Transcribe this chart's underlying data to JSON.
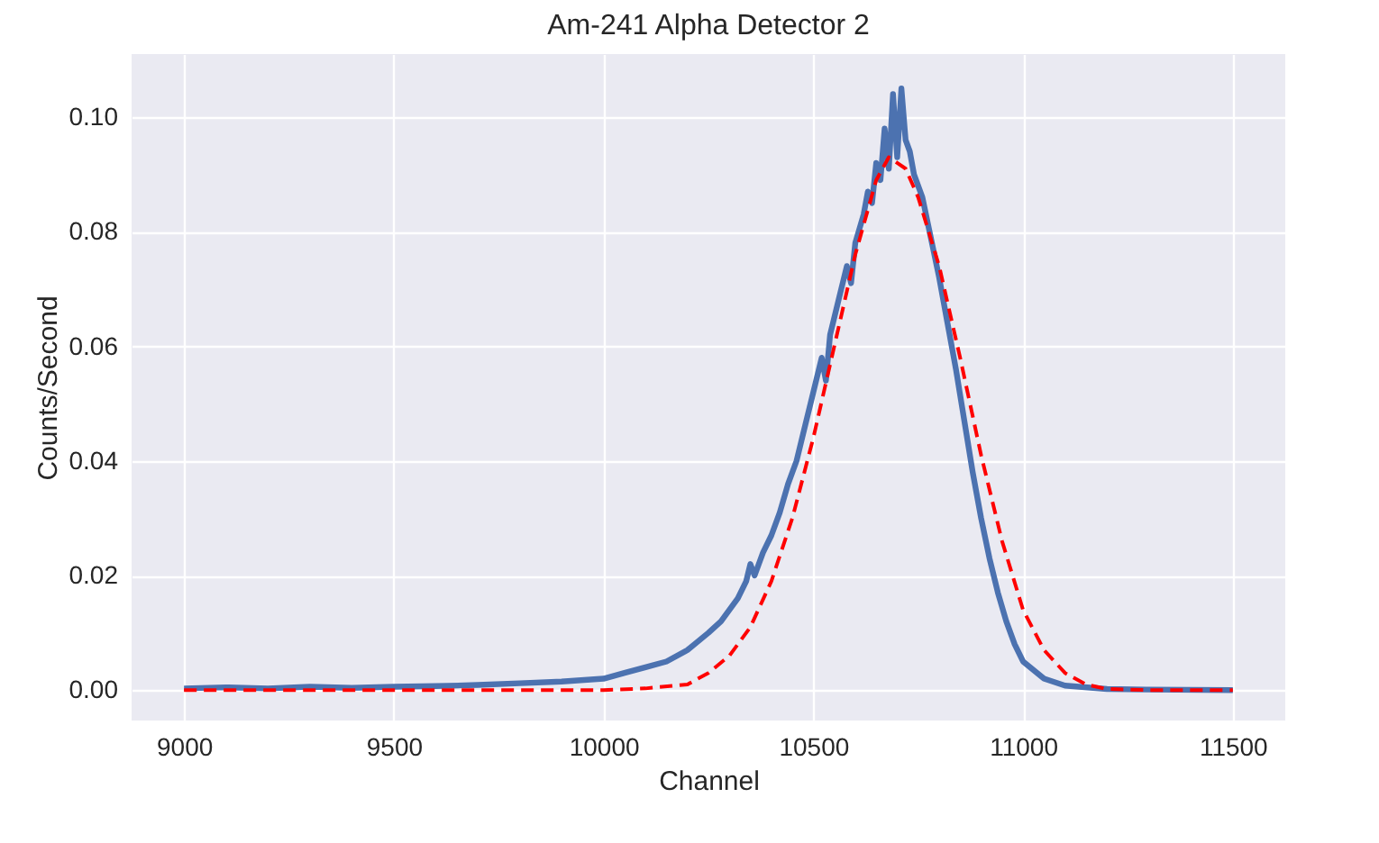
{
  "chart_data": {
    "type": "line",
    "title": "Am-241 Alpha Detector 2",
    "xlabel": "Channel",
    "ylabel": "Counts/Second",
    "xlim": [
      8875,
      11625
    ],
    "ylim": [
      -0.0053,
      0.111
    ],
    "xticks": [
      9000,
      9500,
      10000,
      10500,
      11000,
      11500
    ],
    "yticks": [
      {
        "value": 0,
        "label": "0.00"
      },
      {
        "value": 0.02,
        "label": "0.02"
      },
      {
        "value": 0.04,
        "label": "0.04"
      },
      {
        "value": 0.06,
        "label": "0.06"
      },
      {
        "value": 0.08,
        "label": "0.08"
      },
      {
        "value": 0.1,
        "label": "0.10"
      }
    ],
    "grid": true,
    "series": [
      {
        "color": "#4c72b0",
        "line_style": "solid",
        "x": [
          9000,
          9100,
          9200,
          9300,
          9400,
          9500,
          9600,
          9700,
          9800,
          9900,
          10000,
          10050,
          10100,
          10150,
          10200,
          10250,
          10280,
          10300,
          10320,
          10340,
          10350,
          10360,
          10380,
          10400,
          10420,
          10440,
          10460,
          10480,
          10500,
          10520,
          10530,
          10540,
          10560,
          10580,
          10590,
          10600,
          10620,
          10630,
          10640,
          10650,
          10660,
          10670,
          10680,
          10690,
          10700,
          10710,
          10720,
          10730,
          10740,
          10760,
          10780,
          10800,
          10820,
          10840,
          10860,
          10880,
          10900,
          10920,
          10940,
          10960,
          10980,
          11000,
          11050,
          11100,
          11200,
          11300,
          11500
        ],
        "values": [
          0.0003,
          0.0005,
          0.0003,
          0.0006,
          0.0004,
          0.0006,
          0.0007,
          0.0009,
          0.0012,
          0.0015,
          0.002,
          0.003,
          0.004,
          0.005,
          0.007,
          0.01,
          0.012,
          0.014,
          0.016,
          0.019,
          0.022,
          0.02,
          0.024,
          0.027,
          0.031,
          0.036,
          0.04,
          0.046,
          0.052,
          0.058,
          0.054,
          0.062,
          0.068,
          0.074,
          0.071,
          0.078,
          0.083,
          0.087,
          0.085,
          0.092,
          0.089,
          0.098,
          0.091,
          0.104,
          0.093,
          0.105,
          0.096,
          0.094,
          0.09,
          0.086,
          0.079,
          0.072,
          0.064,
          0.056,
          0.047,
          0.038,
          0.03,
          0.023,
          0.017,
          0.012,
          0.008,
          0.005,
          0.002,
          0.0008,
          0.0002,
          0.0001,
          0
        ]
      },
      {
        "color": "#ff0000",
        "line_style": "dashed",
        "x": [
          9000,
          10000,
          10100,
          10200,
          10250,
          10300,
          10350,
          10400,
          10450,
          10500,
          10550,
          10600,
          10650,
          10680,
          10720,
          10750,
          10800,
          10850,
          10900,
          10950,
          11000,
          11050,
          11100,
          11150,
          11200,
          11300,
          11500
        ],
        "values": [
          0,
          0,
          0.0003,
          0.001,
          0.003,
          0.006,
          0.011,
          0.019,
          0.03,
          0.044,
          0.06,
          0.076,
          0.089,
          0.093,
          0.091,
          0.086,
          0.074,
          0.058,
          0.041,
          0.026,
          0.014,
          0.007,
          0.003,
          0.001,
          0.0002,
          0,
          0
        ]
      }
    ]
  }
}
